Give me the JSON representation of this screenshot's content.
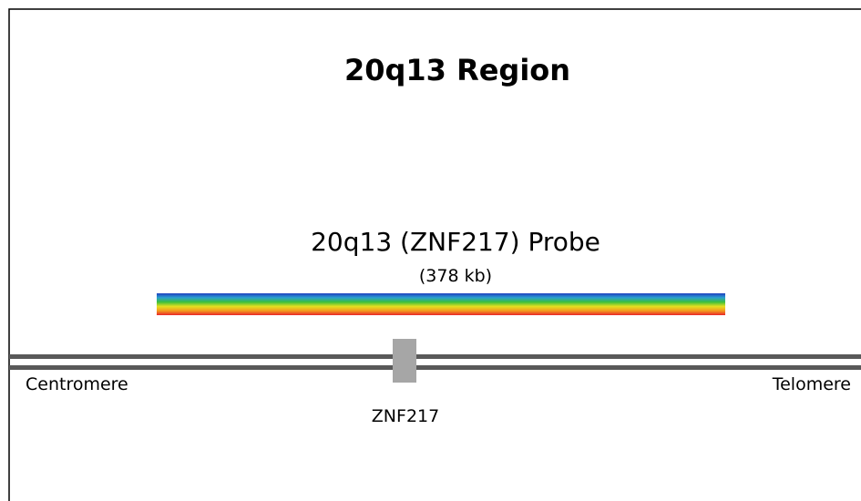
{
  "title": "20q13 Region",
  "probe": {
    "label": "20q13 (ZNF217) Probe",
    "size": "(378 kb)"
  },
  "labels": {
    "left": "Centromere",
    "right": "Telomere",
    "gene": "ZNF217"
  }
}
